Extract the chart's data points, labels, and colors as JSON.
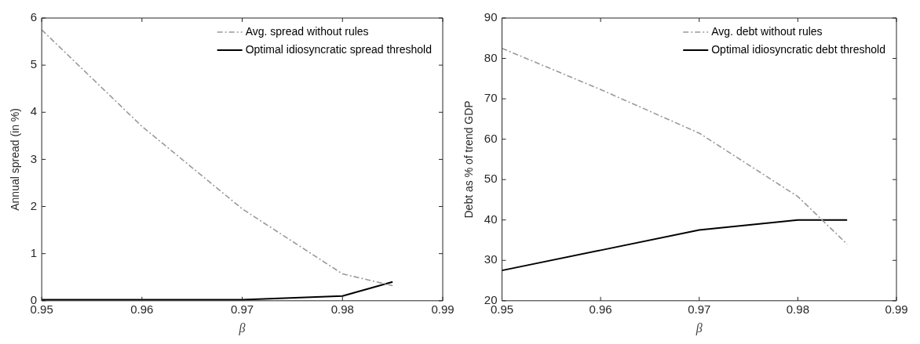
{
  "chart_data": [
    {
      "type": "line",
      "xlabel": "β",
      "ylabel": "Annual spread (in %)",
      "x": [
        0.95,
        0.96,
        0.97,
        0.98,
        0.985
      ],
      "xlim": [
        0.95,
        0.99
      ],
      "xticks": [
        0.95,
        0.96,
        0.97,
        0.98,
        0.99
      ],
      "ylim": [
        0,
        6
      ],
      "yticks": [
        0,
        1,
        2,
        3,
        4,
        5,
        6
      ],
      "grid": false,
      "legend": "top right",
      "marker": "none",
      "series": [
        {
          "name": "Avg. spread without rules",
          "color": "#999999",
          "line_style": "dashed",
          "values": [
            5.75,
            3.7,
            1.95,
            0.57,
            0.32
          ]
        },
        {
          "name": "Optimal idiosyncratic spread threshold",
          "color": "#000000",
          "line_style": "solid",
          "values": [
            0.02,
            0.02,
            0.02,
            0.1,
            0.4
          ]
        }
      ]
    },
    {
      "type": "line",
      "xlabel": "β",
      "ylabel": "Debt as % of trend GDP",
      "x": [
        0.95,
        0.96,
        0.97,
        0.98,
        0.985
      ],
      "xlim": [
        0.95,
        0.99
      ],
      "xticks": [
        0.95,
        0.96,
        0.97,
        0.98,
        0.99
      ],
      "ylim": [
        20,
        90
      ],
      "yticks": [
        20,
        30,
        40,
        50,
        60,
        70,
        80,
        90
      ],
      "grid": false,
      "legend": "top right",
      "marker": "none",
      "series": [
        {
          "name": "Avg. debt without rules",
          "color": "#999999",
          "line_style": "dashed",
          "values": [
            82.5,
            72.3,
            61.5,
            45.8,
            34
          ]
        },
        {
          "name": "Optimal idiosyncratic debt threshold",
          "color": "#000000",
          "line_style": "solid",
          "values": [
            27.5,
            32.5,
            37.5,
            40,
            40
          ]
        }
      ]
    }
  ]
}
